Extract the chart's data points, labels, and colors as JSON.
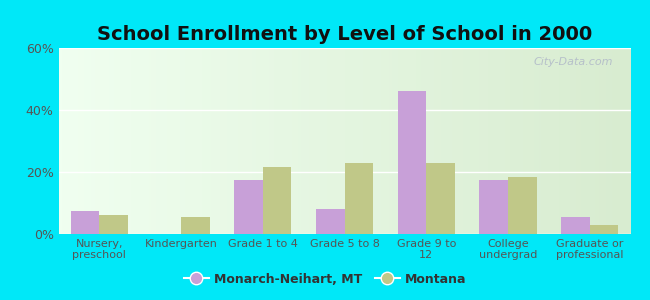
{
  "title": "School Enrollment by Level of School in 2000",
  "categories": [
    "Nursery,\npreschool",
    "Kindergarten",
    "Grade 1 to 4",
    "Grade 5 to 8",
    "Grade 9 to\n12",
    "College\nundergrad",
    "Graduate or\nprofessional"
  ],
  "monarch_values": [
    7.5,
    0.0,
    17.5,
    8.0,
    46.0,
    17.5,
    5.5
  ],
  "montana_values": [
    6.0,
    5.5,
    21.5,
    23.0,
    23.0,
    18.5,
    3.0
  ],
  "monarch_color": "#c8a0d8",
  "montana_color": "#c0c888",
  "legend_monarch": "Monarch-Neihart, MT",
  "legend_montana": "Montana",
  "ylim": [
    0,
    60
  ],
  "yticks": [
    0,
    20,
    40,
    60
  ],
  "ytick_labels": [
    "0%",
    "20%",
    "40%",
    "60%"
  ],
  "background_outer": "#00e8f8",
  "grid_color": "#ffffff",
  "title_fontsize": 14,
  "label_fontsize": 8,
  "tick_color": "#555555",
  "watermark": "City-Data.com"
}
